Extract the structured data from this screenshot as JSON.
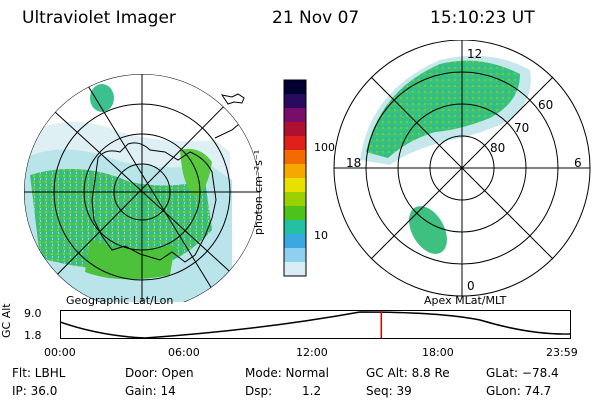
{
  "header": {
    "title": "Ultraviolet Imager",
    "date": "21 Nov 07",
    "time": "15:10:23 UT"
  },
  "maps": {
    "left_caption": "Geographic Lat/Lon",
    "right_caption": "Apex MLat/MLT",
    "right_mlt_labels": [
      "12",
      "18",
      "6",
      "0"
    ],
    "right_lat_labels": [
      "60",
      "70",
      "80"
    ]
  },
  "colorbar": {
    "unit_label": "photon cm⁻²s⁻¹",
    "ticks": [
      "100",
      "10"
    ],
    "scale": "log",
    "colors": [
      "#000030",
      "#2a0a5e",
      "#7a0c6a",
      "#b01030",
      "#e0201a",
      "#f26a00",
      "#f6a800",
      "#e8e000",
      "#9ad000",
      "#4cc21a",
      "#22c0a0",
      "#3aa8e0",
      "#8ed0f0",
      "#d8ecf6"
    ]
  },
  "altitude_plot": {
    "ylabel": "GC Alt",
    "y_ticks": [
      "9.0",
      "1.8"
    ],
    "x_ticks": [
      "00:00",
      "06:00",
      "12:00",
      "18:00",
      "23:59"
    ],
    "current_time_fraction": 0.63,
    "marker_color": "#d00000"
  },
  "info": {
    "filter": "Flt: LBHL",
    "ip": "IP: 36.0",
    "door": "Door: Open",
    "gain": "Gain: 14",
    "mode": "Mode: Normal",
    "dsp_label": "Dsp:",
    "dsp_value": "1.2",
    "gc_alt": "GC Alt: 8.8 Re",
    "seq": "Seq: 39",
    "glat": "GLat: −78.4",
    "glon": "GLon:  74.7"
  }
}
